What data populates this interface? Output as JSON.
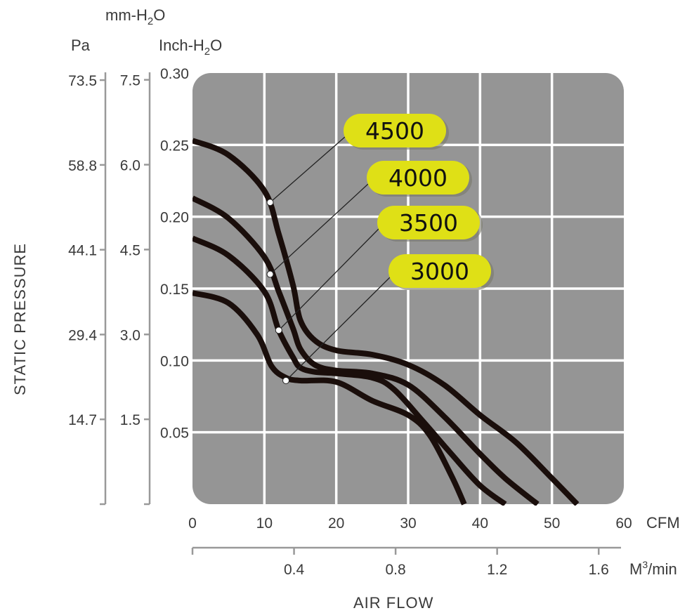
{
  "chart_data": {
    "type": "line",
    "ylabel": "STATIC PRESSURE",
    "xlabel": "AIR FLOW",
    "x_axis": {
      "unit": "CFM",
      "range": [
        0,
        60
      ],
      "ticks": [
        "0",
        "10",
        "20",
        "30",
        "40",
        "50",
        "60"
      ]
    },
    "x_axis_secondary": {
      "unit": "M3/min",
      "unit_text": "M",
      "unit_sup": "3",
      "unit_suffix": "/min",
      "ticks": [
        "0.4",
        "0.8",
        "1.2",
        "1.6"
      ],
      "tick_values": [
        0.4,
        0.8,
        1.2,
        1.6
      ]
    },
    "y_axis": {
      "unit_main": "Inch-H",
      "unit_sub": "2",
      "unit_tail": "O",
      "range": [
        0,
        0.3
      ],
      "ticks": [
        "0.30",
        "0.25",
        "0.20",
        "0.15",
        "0.10",
        "0.05"
      ],
      "tick_values": [
        0.3,
        0.25,
        0.2,
        0.15,
        0.1,
        0.05
      ]
    },
    "y_axis_mmh2o": {
      "unit_main": "mm-H",
      "unit_sub": "2",
      "unit_tail": "O",
      "ticks": [
        "7.5",
        "6.0",
        "4.5",
        "3.0",
        "1.5"
      ],
      "tick_values": [
        7.5,
        6.0,
        4.5,
        3.0,
        1.5
      ]
    },
    "y_axis_pa": {
      "unit": "Pa",
      "ticks": [
        "73.5",
        "58.8",
        "44.1",
        "29.4",
        "14.7"
      ],
      "tick_values": [
        73.5,
        58.8,
        44.1,
        29.4,
        14.7
      ]
    },
    "grid": true,
    "series": [
      {
        "name": "4500",
        "x": [
          0,
          5,
          10,
          12,
          14,
          15,
          17,
          20,
          25,
          30,
          35,
          40,
          45,
          50,
          53.5
        ],
        "y": [
          0.253,
          0.243,
          0.218,
          0.188,
          0.152,
          0.128,
          0.114,
          0.107,
          0.104,
          0.097,
          0.083,
          0.062,
          0.043,
          0.018,
          0.0
        ],
        "marker": [
          10.8,
          0.21
        ]
      },
      {
        "name": "4000",
        "x": [
          0,
          5,
          10,
          12,
          14,
          15,
          17,
          20,
          25,
          30,
          35,
          40,
          43.5,
          48
        ],
        "y": [
          0.213,
          0.199,
          0.172,
          0.148,
          0.122,
          0.108,
          0.097,
          0.093,
          0.091,
          0.083,
          0.061,
          0.035,
          0.018,
          0.0
        ],
        "marker": [
          10.8,
          0.16
        ]
      },
      {
        "name": "3500",
        "x": [
          0,
          5,
          10,
          12,
          14,
          15,
          17,
          20,
          25,
          28,
          32,
          36,
          40,
          43.5
        ],
        "y": [
          0.185,
          0.173,
          0.148,
          0.121,
          0.102,
          0.095,
          0.092,
          0.091,
          0.088,
          0.08,
          0.058,
          0.035,
          0.013,
          0.0
        ],
        "marker": [
          12,
          0.121
        ]
      },
      {
        "name": "3000",
        "x": [
          0,
          5,
          9,
          11,
          13,
          15,
          20,
          25,
          30,
          33,
          36,
          37.8
        ],
        "y": [
          0.147,
          0.14,
          0.118,
          0.096,
          0.088,
          0.086,
          0.085,
          0.072,
          0.062,
          0.048,
          0.02,
          0.0
        ],
        "marker": [
          13,
          0.086
        ]
      }
    ]
  }
}
